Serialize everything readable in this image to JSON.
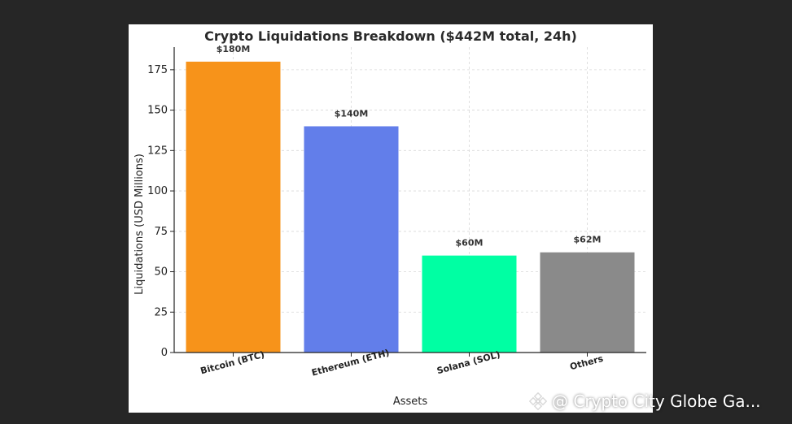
{
  "chart_data": {
    "type": "bar",
    "title": "Crypto Liquidations Breakdown ($442M total, 24h)",
    "xlabel": "Assets",
    "ylabel": "Liquidations (USD Millions)",
    "categories": [
      "Bitcoin (BTC)",
      "Ethereum (ETH)",
      "Solana (SOL)",
      "Others"
    ],
    "values": [
      180,
      140,
      60,
      62
    ],
    "data_labels": [
      "$180M",
      "$140M",
      "$60M",
      "$62M"
    ],
    "colors": [
      "#f7931a",
      "#627eea",
      "#00ffa3",
      "#8a8a8a"
    ],
    "yticks": [
      0,
      25,
      50,
      75,
      100,
      125,
      150,
      175
    ],
    "ylim": [
      0,
      189
    ],
    "grid": true
  },
  "watermark": {
    "text": "@ Crypto City Globe Ga...",
    "icon": "binance-logo-icon"
  }
}
